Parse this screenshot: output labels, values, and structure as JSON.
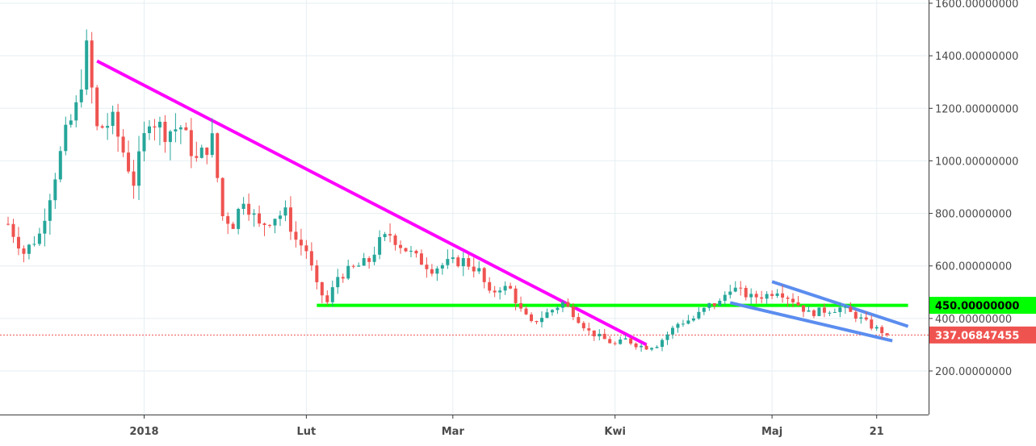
{
  "chart_data": {
    "type": "candlestick",
    "y_axis": {
      "ticks": [
        {
          "value": 1600,
          "label": "1600.00000000"
        },
        {
          "value": 1400,
          "label": "1400.00000000"
        },
        {
          "value": 1200,
          "label": "1200.00000000"
        },
        {
          "value": 1000,
          "label": "1000.00000000"
        },
        {
          "value": 800,
          "label": "800.00000000"
        },
        {
          "value": 600,
          "label": "600.00000000"
        },
        {
          "value": 400,
          "label": "400.00000000"
        },
        {
          "value": 200,
          "label": "200.00000000"
        }
      ],
      "range": [
        30,
        1620
      ]
    },
    "x_axis": {
      "ticks": [
        {
          "day": 26,
          "label": "2018"
        },
        {
          "day": 57,
          "label": "Lut"
        },
        {
          "day": 85,
          "label": "Mar"
        },
        {
          "day": 116,
          "label": "Kwi"
        },
        {
          "day": 146,
          "label": "Maj"
        },
        {
          "day": 166,
          "label": "21"
        }
      ],
      "range": [
        -1,
        172
      ]
    },
    "price_tags": [
      {
        "value": 450,
        "label": "450.00000000",
        "color": "#00ff00",
        "text_color": "#000000"
      },
      {
        "value": 337.06847455,
        "label": "337.06847455",
        "color": "#ef5350",
        "text_color": "#ffffff"
      }
    ],
    "current_price": 337.06847455,
    "trendlines": [
      {
        "name": "downtrend",
        "color": "#ff00ff",
        "points": [
          [
            17,
            1380
          ],
          [
            122,
            300
          ]
        ]
      },
      {
        "name": "support-450",
        "color": "#00ff00",
        "points": [
          [
            59,
            450
          ],
          [
            172,
            450
          ]
        ]
      },
      {
        "name": "wedge-upper",
        "color": "#5b8def",
        "points": [
          [
            146,
            540
          ],
          [
            172,
            370
          ]
        ]
      },
      {
        "name": "wedge-lower",
        "color": "#5b8def",
        "points": [
          [
            138,
            460
          ],
          [
            169,
            315
          ]
        ]
      }
    ],
    "colors": {
      "up": "#26a69a",
      "down": "#ef5350",
      "grid": "#e6eef2",
      "axis": "#3a3a3a"
    },
    "candle_path": [
      [
        0,
        760
      ],
      [
        3,
        650
      ],
      [
        6,
        720
      ],
      [
        9,
        950
      ],
      [
        11,
        1100
      ],
      [
        13,
        1200
      ],
      [
        15,
        1420
      ],
      [
        17,
        1120
      ],
      [
        20,
        1150
      ],
      [
        24,
        920
      ],
      [
        27,
        1170
      ],
      [
        30,
        1110
      ],
      [
        33,
        1130
      ],
      [
        36,
        1000
      ],
      [
        39,
        1080
      ],
      [
        41,
        790
      ],
      [
        43,
        760
      ],
      [
        45,
        860
      ],
      [
        48,
        750
      ],
      [
        51,
        790
      ],
      [
        53,
        800
      ],
      [
        55,
        700
      ],
      [
        57,
        660
      ],
      [
        59,
        520
      ],
      [
        61,
        460
      ],
      [
        63,
        560
      ],
      [
        65,
        580
      ],
      [
        67,
        600
      ],
      [
        69,
        620
      ],
      [
        71,
        690
      ],
      [
        73,
        720
      ],
      [
        75,
        680
      ],
      [
        78,
        630
      ],
      [
        81,
        590
      ],
      [
        84,
        610
      ],
      [
        87,
        620
      ],
      [
        90,
        580
      ],
      [
        92,
        490
      ],
      [
        94,
        520
      ],
      [
        96,
        510
      ],
      [
        98,
        430
      ],
      [
        100,
        380
      ],
      [
        103,
        420
      ],
      [
        106,
        460
      ],
      [
        108,
        420
      ],
      [
        111,
        350
      ],
      [
        114,
        320
      ],
      [
        116,
        300
      ],
      [
        118,
        320
      ],
      [
        120,
        300
      ],
      [
        122,
        290
      ],
      [
        124,
        300
      ],
      [
        126,
        340
      ],
      [
        128,
        380
      ],
      [
        131,
        400
      ],
      [
        134,
        450
      ],
      [
        136,
        460
      ],
      [
        138,
        520
      ],
      [
        140,
        500
      ],
      [
        142,
        480
      ],
      [
        145,
        490
      ],
      [
        147,
        510
      ],
      [
        150,
        470
      ],
      [
        153,
        420
      ],
      [
        156,
        430
      ],
      [
        159,
        440
      ],
      [
        162,
        410
      ],
      [
        165,
        370
      ],
      [
        168,
        340
      ]
    ]
  }
}
